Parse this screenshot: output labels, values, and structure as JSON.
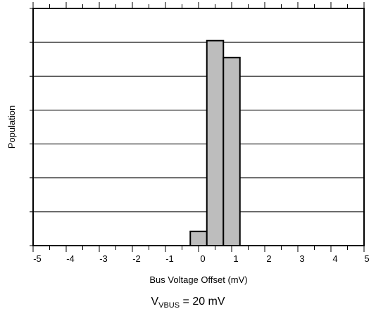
{
  "chart_data": {
    "type": "bar",
    "subtype": "histogram",
    "xlabel": "Bus Voltage Offset (mV)",
    "ylabel": "Population",
    "xlim": [
      -5,
      5
    ],
    "ylim": [
      0,
      7
    ],
    "x_ticks": [
      "-5",
      "-4",
      "-3",
      "-2",
      "-1",
      "0",
      "1",
      "2",
      "3",
      "4",
      "5"
    ],
    "grid": "horizontal",
    "y_tick_labels": "none",
    "bar_color": "#bdbdbd",
    "bins": [
      {
        "from": -0.25,
        "to": 0.25,
        "value": 0.42
      },
      {
        "from": 0.25,
        "to": 0.75,
        "value": 6.05
      },
      {
        "from": 0.75,
        "to": 1.25,
        "value": 5.55
      }
    ]
  },
  "condition": {
    "prefix": "V",
    "subscript": "VBUS",
    "suffix": " = 20 mV"
  }
}
